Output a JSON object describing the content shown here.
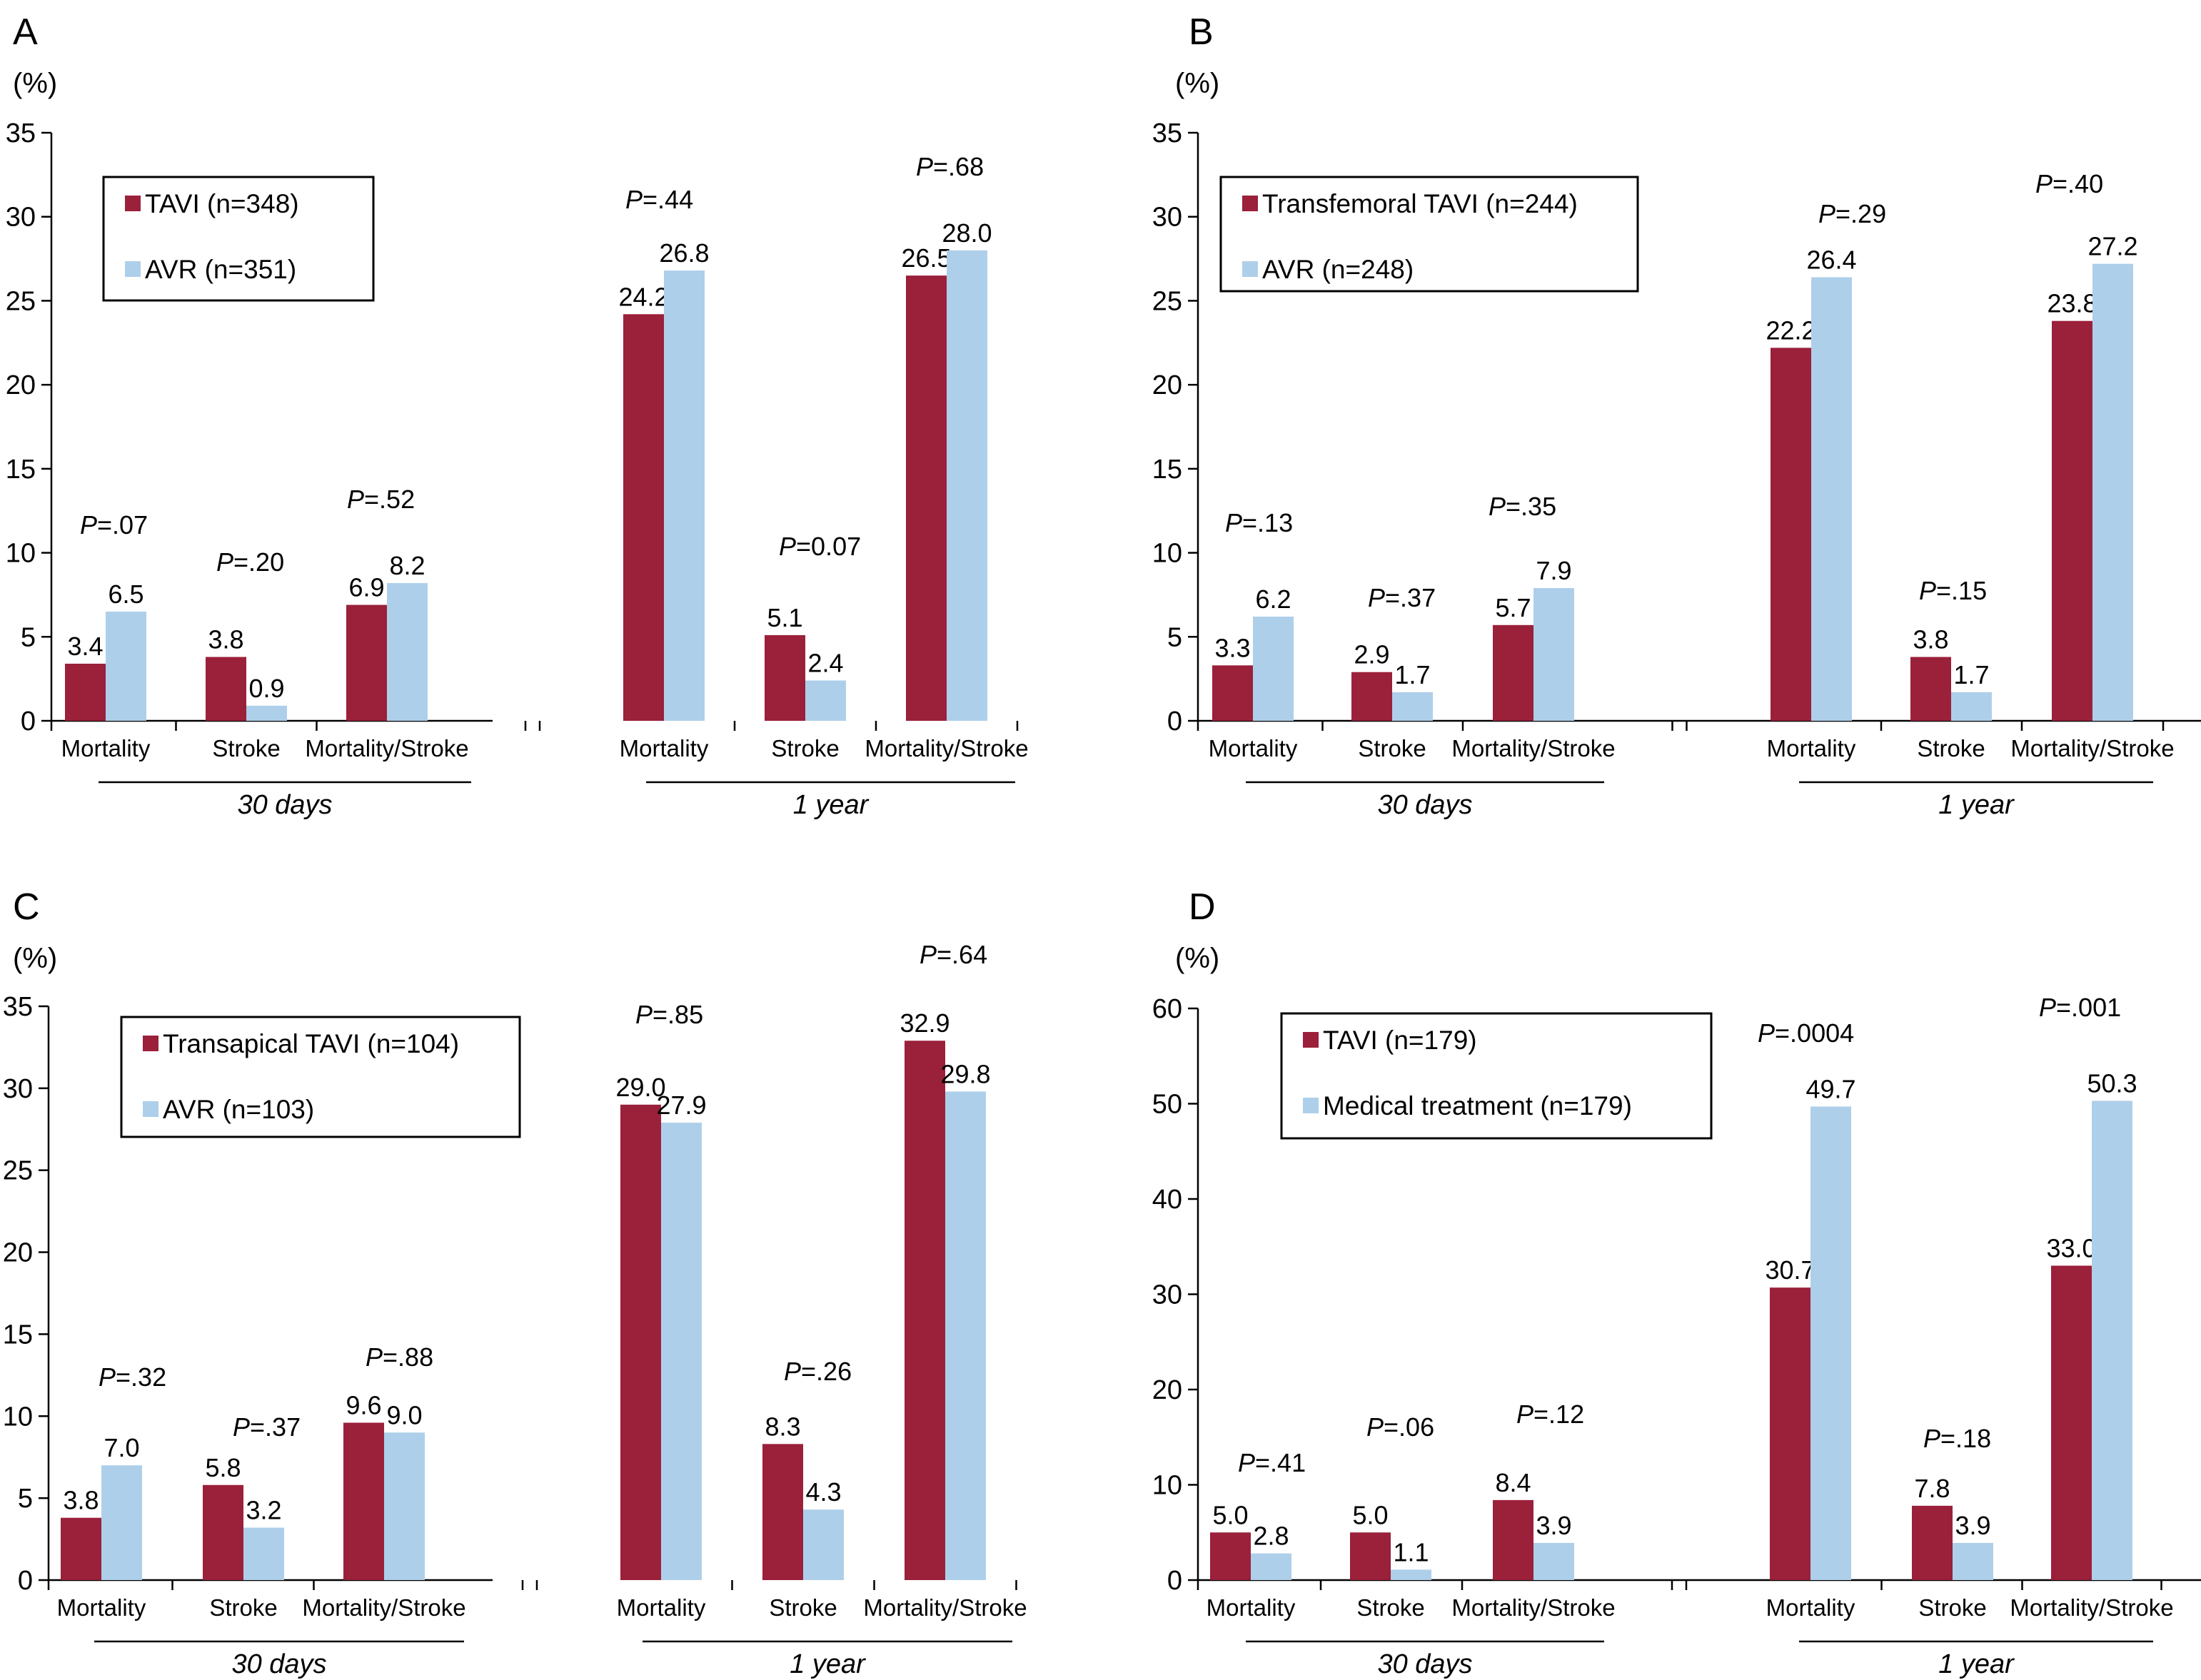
{
  "colors": {
    "series1": "#9B203A",
    "series2": "#AECFEA",
    "axis": "#000000"
  },
  "chart_data": [
    {
      "type": "bar",
      "panel_label": "A",
      "y_unit": "(%)",
      "ylim": [
        0,
        35
      ],
      "yticks": [
        "0",
        "5",
        "10",
        "15",
        "20",
        "25",
        "30",
        "35"
      ],
      "categories": [
        "Mortality",
        "Stroke",
        "Mortality/Stroke",
        "Mortality",
        "Stroke",
        "Mortality/Stroke"
      ],
      "groups": [
        "30 days",
        "1 year"
      ],
      "legend": {
        "entries": [
          "TAVI (n=348)",
          "AVR (n=351)"
        ],
        "placement": "top-left"
      },
      "series": [
        {
          "name": "TAVI (n=348)",
          "values": [
            3.4,
            3.8,
            6.9,
            24.2,
            5.1,
            26.5
          ],
          "labels": [
            "3.4",
            "3.8",
            "6.9",
            "24.2",
            "5.1",
            "26.5"
          ]
        },
        {
          "name": "AVR (n=351)",
          "values": [
            6.5,
            0.9,
            8.2,
            26.8,
            2.4,
            28.0
          ],
          "labels": [
            "6.5",
            "0.9",
            "8.2",
            "26.8",
            "2.4",
            "28.0"
          ]
        }
      ],
      "p_values": [
        "=.07",
        "=.20",
        "=.52",
        "=.44",
        "=0.07",
        "=.68"
      ]
    },
    {
      "type": "bar",
      "panel_label": "B",
      "y_unit": "(%)",
      "ylim": [
        0,
        35
      ],
      "yticks": [
        "0",
        "5",
        "10",
        "15",
        "20",
        "25",
        "30",
        "35"
      ],
      "categories": [
        "Mortality",
        "Stroke",
        "Mortality/Stroke",
        "Mortality",
        "Stroke",
        "Mortality/Stroke"
      ],
      "groups": [
        "30 days",
        "1 year"
      ],
      "legend": {
        "entries": [
          "Transfemoral TAVI (n=244)",
          "AVR (n=248)"
        ],
        "placement": "top-left"
      },
      "series": [
        {
          "name": "Transfemoral TAVI (n=244)",
          "values": [
            3.3,
            2.9,
            5.7,
            22.2,
            3.8,
            23.8
          ],
          "labels": [
            "3.3",
            "2.9",
            "5.7",
            "22.2",
            "3.8",
            "23.8"
          ]
        },
        {
          "name": "AVR (n=248)",
          "values": [
            6.2,
            1.7,
            7.9,
            26.4,
            1.7,
            27.2
          ],
          "labels": [
            "6.2",
            "1.7",
            "7.9",
            "26.4",
            "1.7",
            "27.2"
          ]
        }
      ],
      "p_values": [
        "=.13",
        "=.37",
        "=.35",
        "=.29",
        "=.15",
        "=.40"
      ]
    },
    {
      "type": "bar",
      "panel_label": "C",
      "y_unit": "(%)",
      "ylim": [
        0,
        35
      ],
      "yticks": [
        "0",
        "5",
        "10",
        "15",
        "20",
        "25",
        "30",
        "35"
      ],
      "categories": [
        "Mortality",
        "Stroke",
        "Mortality/Stroke",
        "Mortality",
        "Stroke",
        "Mortality/Stroke"
      ],
      "groups": [
        "30 days",
        "1 year"
      ],
      "legend": {
        "entries": [
          "Transapical TAVI (n=104)",
          "AVR (n=103)"
        ],
        "placement": "top-left"
      },
      "series": [
        {
          "name": "Transapical TAVI (n=104)",
          "values": [
            3.8,
            5.8,
            9.6,
            29.0,
            8.3,
            32.9
          ],
          "labels": [
            "3.8",
            "5.8",
            "9.6",
            "29.0",
            "8.3",
            "32.9"
          ]
        },
        {
          "name": "AVR (n=103)",
          "values": [
            7.0,
            3.2,
            9.0,
            27.9,
            4.3,
            29.8
          ],
          "labels": [
            "7.0",
            "3.2",
            "9.0",
            "27.9",
            "4.3",
            "29.8"
          ]
        }
      ],
      "p_values": [
        "=.32",
        "=.37",
        "=.88",
        "=.85",
        "=.26",
        "=.64"
      ]
    },
    {
      "type": "bar",
      "panel_label": "D",
      "y_unit": "(%)",
      "ylim": [
        0,
        60
      ],
      "yticks": [
        "0",
        "10",
        "20",
        "30",
        "40",
        "50",
        "60"
      ],
      "categories": [
        "Mortality",
        "Stroke",
        "Mortality/Stroke",
        "Mortality",
        "Stroke",
        "Mortality/Stroke"
      ],
      "groups": [
        "30 days",
        "1 year"
      ],
      "legend": {
        "entries": [
          "TAVI (n=179)",
          "Medical treatment (n=179)"
        ],
        "placement": "top-left"
      },
      "series": [
        {
          "name": "TAVI (n=179)",
          "values": [
            5.0,
            5.0,
            8.4,
            30.7,
            7.8,
            33.0
          ],
          "labels": [
            "5.0",
            "5.0",
            "8.4",
            "30.7",
            "7.8",
            "33.0"
          ]
        },
        {
          "name": "Medical treatment (n=179)",
          "values": [
            2.8,
            1.1,
            3.9,
            49.7,
            3.9,
            50.3
          ],
          "labels": [
            "2.8",
            "1.1",
            "3.9",
            "49.7",
            "3.9",
            "50.3"
          ]
        }
      ],
      "p_values": [
        "=.41",
        "=.06",
        "=.12",
        "=.0004",
        "=.18",
        "=.001"
      ]
    }
  ]
}
